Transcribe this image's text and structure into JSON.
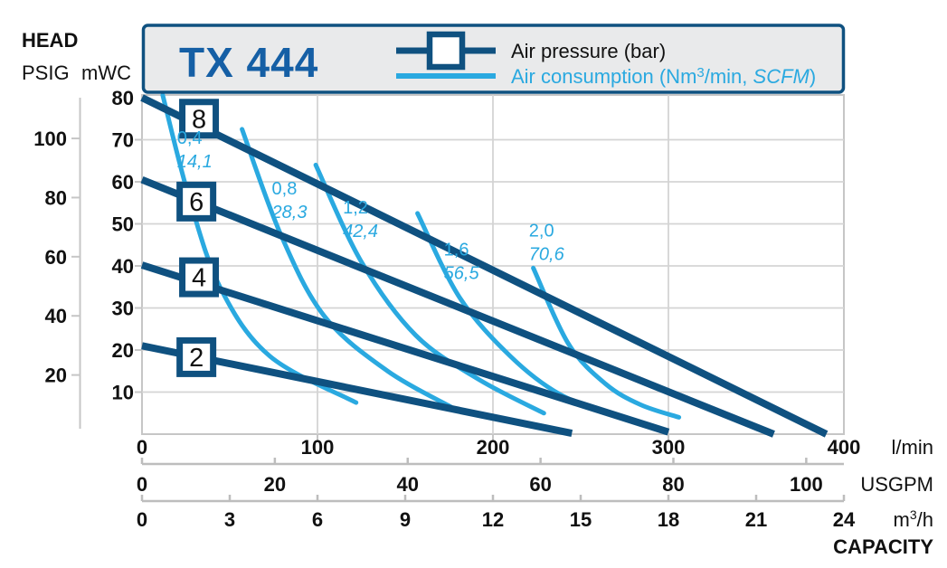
{
  "colors": {
    "dark_blue": "#0F5180",
    "light_blue": "#2AA9E0",
    "title_blue": "#155FA5",
    "grid": "#D4D4D4",
    "frame": "#C6C6C6",
    "axis_gray": "#BDBDBD",
    "box_fill": "#E9EAEB",
    "text": "#111111"
  },
  "header": {
    "model": "TX 444",
    "pressure_legend": "Air pressure (bar)",
    "consumption_legend_parts": [
      "Air consumption (Nm",
      "3",
      "/min, ",
      "SCFM",
      ")"
    ]
  },
  "axes_labels": {
    "head": "HEAD",
    "psig": "PSIG",
    "mwc": "mWC",
    "capacity": "CAPACITY"
  },
  "chart_data": {
    "type": "line",
    "title": "TX 444",
    "xlabel": "CAPACITY",
    "ylabel": "HEAD",
    "x_max_lmin": 400,
    "y_max_mwc": 80,
    "grid_on": true,
    "x_axes": [
      {
        "unit": "l/min",
        "ticks": [
          0,
          100,
          200,
          300,
          400
        ],
        "lmin_per_unit": 1
      },
      {
        "unit": "USGPM",
        "ticks": [
          0,
          20,
          40,
          60,
          80,
          100
        ],
        "lmin_per_unit": 3.7854
      },
      {
        "unit": "m3/h",
        "unit_parts": [
          "m",
          "3",
          "/h"
        ],
        "ticks": [
          0,
          3,
          6,
          9,
          12,
          15,
          18,
          21,
          24
        ],
        "lmin_per_unit": 16.6667
      }
    ],
    "y_axes": [
      {
        "unit": "mWC",
        "labels": [
          80,
          70,
          60,
          50,
          40,
          30,
          20,
          10
        ],
        "grid": [
          10,
          20,
          30,
          40,
          50,
          60,
          70
        ],
        "mwc_per_unit": 1
      },
      {
        "unit": "PSIG",
        "ticks": [
          100,
          80,
          60,
          40,
          20
        ],
        "mwc_per_unit": 0.7031
      }
    ],
    "pressure_curves": [
      {
        "bar": "8",
        "points": [
          [
            0,
            80.0
          ],
          [
            390,
            0.0
          ]
        ],
        "marker_at": [
          32.5,
          75.0
        ]
      },
      {
        "bar": "6",
        "points": [
          [
            0,
            60.5
          ],
          [
            360,
            0.0
          ]
        ],
        "marker_at": [
          31.0,
          55.3
        ]
      },
      {
        "bar": "4",
        "points": [
          [
            0,
            40.2
          ],
          [
            300,
            0.5
          ]
        ],
        "marker_at": [
          32.5,
          37.3
        ]
      },
      {
        "bar": "2",
        "points": [
          [
            0,
            21.0
          ],
          [
            245,
            0.2
          ]
        ],
        "marker_at": [
          31.0,
          18.3
        ]
      }
    ],
    "consumption_curves": [
      {
        "nm3_min": "0,4",
        "scfm": "14,1",
        "points": [
          [
            11.8,
            80.6
          ],
          [
            27,
            56.0
          ],
          [
            45,
            34.5
          ],
          [
            73,
            18.5
          ],
          [
            122,
            7.5
          ]
        ],
        "label_at": [
          20.0,
          69.0
        ]
      },
      {
        "nm3_min": "0,8",
        "scfm": "28,3",
        "points": [
          [
            57,
            72.5
          ],
          [
            79,
            47.5
          ],
          [
            104,
            28.0
          ],
          [
            140,
            15.0
          ],
          [
            176,
            6.5
          ]
        ],
        "label_at": [
          74.0,
          57.0
        ]
      },
      {
        "nm3_min": "1,2",
        "scfm": "42,4",
        "points": [
          [
            99,
            64.0
          ],
          [
            125,
            41.0
          ],
          [
            156,
            23.5
          ],
          [
            192,
            13.0
          ],
          [
            229,
            5.0
          ]
        ],
        "label_at": [
          114.5,
          52.5
        ]
      },
      {
        "nm3_min": "1,6",
        "scfm": "56,5",
        "points": [
          [
            157,
            52.5
          ],
          [
            181,
            32.5
          ],
          [
            210,
            18.5
          ],
          [
            238,
            9.5
          ],
          [
            269,
            4.5
          ]
        ],
        "label_at": [
          172.0,
          42.5
        ]
      },
      {
        "nm3_min": "2,0",
        "scfm": "70,6",
        "points": [
          [
            223,
            39.5
          ],
          [
            243,
            21.5
          ],
          [
            264,
            12.0
          ],
          [
            284,
            7.0
          ],
          [
            306,
            4.0
          ]
        ],
        "label_at": [
          220.5,
          47.0
        ]
      }
    ]
  }
}
